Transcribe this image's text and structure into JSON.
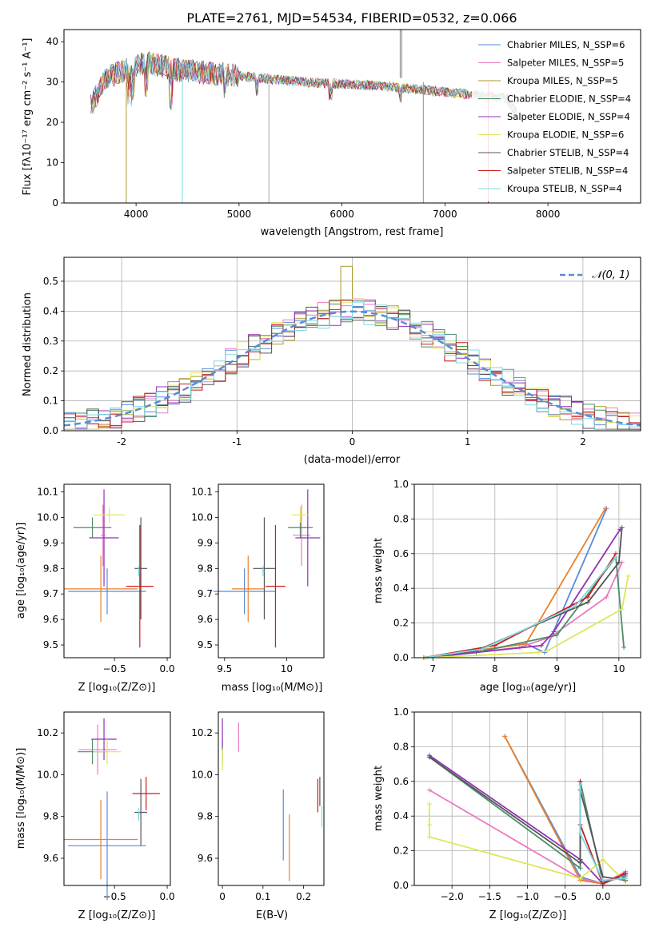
{
  "figure_title": "PLATE=2761, MJD=54534, FIBERID=0532, z=0.066",
  "colors": [
    "#5b8ad9",
    "#e87bbf",
    "#a99a2a",
    "#4d8c68",
    "#9033b3",
    "#dfe65b",
    "#555555",
    "#c81e1e",
    "#7ed9e6"
  ],
  "chart_data": [
    {
      "id": "spectrum",
      "type": "line",
      "title": "PLATE=2761, MJD=54534, FIBERID=0532, z=0.066",
      "xlabel": "wavelength [Angstrom, rest frame]",
      "ylabel": "Flux [fλ10⁻¹⁷ erg cm⁻² s⁻¹ A⁻¹]",
      "xlim": [
        3300,
        8900
      ],
      "ylim": [
        0,
        43
      ],
      "xticks": [
        4000,
        5000,
        6000,
        7000,
        8000
      ],
      "yticks": [
        0,
        10,
        20,
        30,
        40
      ],
      "grid": false,
      "legend_position": "upper right",
      "series": [
        {
          "name": "Chabrier MILES, N_SSP=6",
          "color": "#5b8ad9"
        },
        {
          "name": "Salpeter MILES, N_SSP=5",
          "color": "#e87bbf"
        },
        {
          "name": "Kroupa MILES, N_SSP=5",
          "color": "#a99a2a"
        },
        {
          "name": "Chabrier ELODIE, N_SSP=4",
          "color": "#4d8c68"
        },
        {
          "name": "Salpeter ELODIE, N_SSP=4",
          "color": "#9033b3"
        },
        {
          "name": "Kroupa ELODIE, N_SSP=6",
          "color": "#dfe65b"
        },
        {
          "name": "Chabrier STELIB, N_SSP=4",
          "color": "#555555"
        },
        {
          "name": "Salpeter STELIB, N_SSP=4",
          "color": "#c81e1e"
        },
        {
          "name": "Kroupa STELIB, N_SSP=4",
          "color": "#7ed9e6"
        }
      ],
      "approx_continuum": {
        "x": [
          3560,
          3700,
          3900,
          4100,
          4400,
          4800,
          5200,
          5600,
          6000,
          6400,
          6800,
          7200,
          7600,
          7700
        ],
        "y": [
          24,
          31,
          33,
          35,
          33,
          32,
          31,
          30,
          29.5,
          29,
          28,
          27,
          26,
          22
        ]
      }
    },
    {
      "id": "residuals",
      "type": "histogram",
      "xlabel": "(data-model)/error",
      "ylabel": "Normed distribution",
      "xlim": [
        -2.5,
        2.5
      ],
      "ylim": [
        0,
        0.58
      ],
      "xticks": [
        -2,
        -1,
        0,
        1,
        2
      ],
      "yticks": [
        0.0,
        0.1,
        0.2,
        0.3,
        0.4,
        0.5
      ],
      "grid": true,
      "legend": "𝒩(0, 1)",
      "legend_position": "upper right",
      "reference_curve": {
        "name": "N(0,1)",
        "mean": 0,
        "sigma": 1,
        "style": "dashed",
        "color": "#5b8ad9"
      },
      "bin_width": 0.1,
      "histogram_peak": {
        "x": -0.05,
        "y": 0.55
      }
    },
    {
      "id": "age-vs-Z",
      "type": "errorbar",
      "xlabel": "Z [log₁₀(Z/Z⊙)]",
      "ylabel": "age  [log₁₀(age/yr)]",
      "xlim": [
        -0.98,
        0.03
      ],
      "ylim": [
        9.45,
        10.13
      ],
      "xticks": [
        -0.5,
        0.0
      ],
      "xtick_labels": [
        "−0.5",
        "0.0"
      ],
      "yticks": [
        9.5,
        9.6,
        9.7,
        9.8,
        9.9,
        10.0,
        10.1
      ],
      "grid": false,
      "points": [
        {
          "x": -0.57,
          "xerr": 0.37,
          "y": 9.71,
          "yerr": 0.09,
          "color": "#5b8ad9"
        },
        {
          "x": -0.61,
          "xerr": 0.02,
          "y": 9.93,
          "yerr": 0.12,
          "color": "#e87bbf"
        },
        {
          "x": -0.63,
          "xerr": 0.35,
          "y": 9.72,
          "yerr": 0.13,
          "color": "#e8812a"
        },
        {
          "x": -0.71,
          "xerr": 0.18,
          "y": 9.96,
          "yerr": 0.04,
          "color": "#4d8c68"
        },
        {
          "x": -0.6,
          "xerr": 0.14,
          "y": 9.92,
          "yerr": 0.19,
          "color": "#9033b3"
        },
        {
          "x": -0.55,
          "xerr": 0.15,
          "y": 10.01,
          "yerr": 0.03,
          "color": "#dfe65b"
        },
        {
          "x": -0.25,
          "xerr": 0.06,
          "y": 9.8,
          "yerr": 0.2,
          "color": "#555555"
        },
        {
          "x": -0.26,
          "xerr": 0.13,
          "y": 9.73,
          "yerr": 0.24,
          "color": "#c81e1e"
        },
        {
          "x": -0.27,
          "xerr": 0.01,
          "y": 9.79,
          "yerr": 0.02,
          "color": "#7ed9e6"
        }
      ]
    },
    {
      "id": "age-vs-mass",
      "type": "errorbar",
      "xlabel": "mass [log₁₀(M/M⊙)]",
      "ylabel": "",
      "xlim": [
        9.45,
        10.3
      ],
      "ylim": [
        9.45,
        10.13
      ],
      "xticks": [
        9.5,
        10.0
      ],
      "yticks": [
        9.5,
        9.6,
        9.7,
        9.8,
        9.9,
        10.0,
        10.1
      ],
      "grid": false,
      "points": [
        {
          "x": 9.66,
          "xerr": 0.25,
          "y": 9.71,
          "yerr": 0.09,
          "color": "#5b8ad9"
        },
        {
          "x": 10.12,
          "xerr": 0.07,
          "y": 9.93,
          "yerr": 0.12,
          "color": "#e87bbf"
        },
        {
          "x": 9.69,
          "xerr": 0.13,
          "y": 9.72,
          "yerr": 0.13,
          "color": "#e8812a"
        },
        {
          "x": 10.11,
          "xerr": 0.1,
          "y": 9.96,
          "yerr": 0.04,
          "color": "#4d8c68"
        },
        {
          "x": 10.17,
          "xerr": 0.1,
          "y": 9.92,
          "yerr": 0.19,
          "color": "#9033b3"
        },
        {
          "x": 10.11,
          "xerr": 0.07,
          "y": 10.01,
          "yerr": 0.03,
          "color": "#dfe65b"
        },
        {
          "x": 9.82,
          "xerr": 0.09,
          "y": 9.8,
          "yerr": 0.2,
          "color": "#555555"
        },
        {
          "x": 9.91,
          "xerr": 0.08,
          "y": 9.73,
          "yerr": 0.24,
          "color": "#c81e1e"
        },
        {
          "x": 9.81,
          "xerr": 0.01,
          "y": 9.79,
          "yerr": 0.02,
          "color": "#7ed9e6"
        }
      ]
    },
    {
      "id": "weight-vs-age",
      "type": "line",
      "xlabel": "age  [log₁₀(age/yr)]",
      "ylabel": "mass weight",
      "xlim": [
        6.7,
        10.35
      ],
      "ylim": [
        0,
        1.0
      ],
      "xticks": [
        7,
        8,
        9,
        10
      ],
      "yticks": [
        0.0,
        0.2,
        0.4,
        0.6,
        0.8,
        1.0
      ],
      "grid": true,
      "series": [
        {
          "color": "#5b8ad9",
          "x": [
            6.85,
            8.5,
            8.8,
            9.8
          ],
          "y": [
            0.0,
            0.08,
            0.03,
            0.86
          ]
        },
        {
          "color": "#e87bbf",
          "x": [
            6.9,
            8.4,
            8.9,
            9.8,
            10.05
          ],
          "y": [
            0.0,
            0.06,
            0.12,
            0.35,
            0.55
          ]
        },
        {
          "color": "#e8812a",
          "x": [
            6.85,
            8.5,
            9.78
          ],
          "y": [
            0.0,
            0.08,
            0.86
          ]
        },
        {
          "color": "#4d8c68",
          "x": [
            6.9,
            7.7,
            9.0,
            9.95,
            10.08
          ],
          "y": [
            0.0,
            0.03,
            0.13,
            0.58,
            0.06
          ]
        },
        {
          "color": "#9033b3",
          "x": [
            6.9,
            8.75,
            8.95,
            10.02
          ],
          "y": [
            0.0,
            0.07,
            0.15,
            0.74
          ]
        },
        {
          "color": "#dfe65b",
          "x": [
            6.9,
            8.7,
            8.85,
            10.05,
            10.15
          ],
          "y": [
            0.0,
            0.03,
            0.04,
            0.28,
            0.47
          ]
        },
        {
          "color": "#555555",
          "x": [
            6.85,
            7.7,
            9.5,
            10.0,
            10.05
          ],
          "y": [
            0.0,
            0.04,
            0.32,
            0.55,
            0.75
          ]
        },
        {
          "color": "#c81e1e",
          "x": [
            6.85,
            8.0,
            9.5,
            9.95
          ],
          "y": [
            0.0,
            0.07,
            0.35,
            0.6
          ]
        },
        {
          "color": "#7ed9e6",
          "x": [
            6.85,
            7.8,
            9.3,
            9.95
          ],
          "y": [
            0.0,
            0.05,
            0.3,
            0.58
          ]
        }
      ]
    },
    {
      "id": "mass-vs-Z",
      "type": "errorbar",
      "xlabel": "Z [log₁₀(Z/Z⊙)]",
      "ylabel": "mass [log₁₀(M/M⊙)]",
      "xlim": [
        -0.98,
        0.03
      ],
      "ylim": [
        9.47,
        10.3
      ],
      "xticks": [
        -0.5,
        0.0
      ],
      "xtick_labels": [
        "−0.5",
        "0.0"
      ],
      "yticks": [
        9.6,
        9.8,
        10.0,
        10.2
      ],
      "grid": false,
      "points": [
        {
          "x": -0.57,
          "xerr": 0.37,
          "y": 9.66,
          "yerr": 0.26,
          "color": "#5b8ad9"
        },
        {
          "x": -0.66,
          "xerr": 0.18,
          "y": 10.12,
          "yerr": 0.12,
          "color": "#e87bbf"
        },
        {
          "x": -0.63,
          "xerr": 0.35,
          "y": 9.69,
          "yerr": 0.19,
          "color": "#e8812a"
        },
        {
          "x": -0.71,
          "xerr": 0.14,
          "y": 10.11,
          "yerr": 0.06,
          "color": "#4d8c68"
        },
        {
          "x": -0.6,
          "xerr": 0.12,
          "y": 10.17,
          "yerr": 0.1,
          "color": "#9033b3"
        },
        {
          "x": -0.57,
          "xerr": 0.13,
          "y": 10.11,
          "yerr": 0.06,
          "color": "#dfe65b"
        },
        {
          "x": -0.25,
          "xerr": 0.06,
          "y": 9.82,
          "yerr": 0.16,
          "color": "#555555"
        },
        {
          "x": -0.2,
          "xerr": 0.13,
          "y": 9.91,
          "yerr": 0.08,
          "color": "#c81e1e"
        },
        {
          "x": -0.27,
          "xerr": 0.01,
          "y": 9.81,
          "yerr": 0.03,
          "color": "#7ed9e6"
        }
      ]
    },
    {
      "id": "mass-vs-EBV",
      "type": "errorbar",
      "xlabel": "E(B-V)",
      "ylabel": "",
      "xlim": [
        -0.01,
        0.25
      ],
      "ylim": [
        9.47,
        10.3
      ],
      "xticks": [
        0.0,
        0.1,
        0.2
      ],
      "yticks": [
        9.6,
        9.8,
        10.0,
        10.2
      ],
      "grid": false,
      "points": [
        {
          "x": 0.15,
          "y": 9.76,
          "yerr": 0.17,
          "color": "#5b8ad9"
        },
        {
          "x": 0.04,
          "y": 10.18,
          "yerr": 0.07,
          "color": "#e87bbf"
        },
        {
          "x": 0.165,
          "y": 9.65,
          "yerr": 0.16,
          "color": "#e8812a"
        },
        {
          "x": 0.0,
          "y": 10.11,
          "yerr": 0.06,
          "color": "#4d8c68"
        },
        {
          "x": 0.0,
          "y": 10.2,
          "yerr": 0.07,
          "color": "#9033b3"
        },
        {
          "x": 0.0,
          "y": 10.07,
          "yerr": 0.05,
          "color": "#dfe65b"
        },
        {
          "x": 0.24,
          "y": 9.92,
          "yerr": 0.07,
          "color": "#555555"
        },
        {
          "x": 0.235,
          "y": 9.9,
          "yerr": 0.08,
          "color": "#c81e1e"
        },
        {
          "x": 0.245,
          "y": 9.8,
          "yerr": 0.05,
          "color": "#7ed9e6"
        }
      ]
    },
    {
      "id": "weight-vs-Z",
      "type": "line",
      "xlabel": "Z [log₁₀(Z/Z⊙)]",
      "ylabel": "mass weight",
      "xlim": [
        -2.5,
        0.5
      ],
      "ylim": [
        0,
        1.0
      ],
      "xticks": [
        -2.0,
        -1.5,
        -1.0,
        -0.5,
        0.0
      ],
      "xtick_labels": [
        "−2.0",
        "−1.5",
        "−1.0",
        "−0.5",
        "0.0"
      ],
      "yticks": [
        0.0,
        0.2,
        0.4,
        0.6,
        0.8,
        1.0
      ],
      "grid": true,
      "series": [
        {
          "color": "#5b8ad9",
          "x": [
            -1.3,
            -0.3,
            0.0,
            0.3
          ],
          "y": [
            0.86,
            0.05,
            0.01,
            0.06
          ]
        },
        {
          "color": "#e87bbf",
          "x": [
            -2.3,
            -0.3,
            0.0,
            0.3
          ],
          "y": [
            0.55,
            0.04,
            0.01,
            0.08
          ]
        },
        {
          "color": "#e8812a",
          "x": [
            -1.3,
            -0.3,
            0.0,
            0.3
          ],
          "y": [
            0.86,
            0.03,
            0.01,
            0.07
          ]
        },
        {
          "color": "#4d8c68",
          "x": [
            -2.3,
            -0.3,
            -0.3,
            0.0,
            0.3
          ],
          "y": [
            0.74,
            0.1,
            0.6,
            0.02,
            0.05
          ]
        },
        {
          "color": "#9033b3",
          "x": [
            -2.3,
            -0.3,
            0.0,
            0.3
          ],
          "y": [
            0.75,
            0.15,
            0.01,
            0.07
          ]
        },
        {
          "color": "#dfe65b",
          "x": [
            -2.3,
            -2.3,
            -2.3,
            -0.3,
            0.0,
            0.3
          ],
          "y": [
            0.47,
            0.35,
            0.28,
            0.04,
            0.15,
            0.02
          ]
        },
        {
          "color": "#555555",
          "x": [
            -2.3,
            -0.3,
            -0.3,
            0.0,
            0.3
          ],
          "y": [
            0.74,
            0.13,
            0.55,
            0.05,
            0.03
          ]
        },
        {
          "color": "#c81e1e",
          "x": [
            -0.3,
            -0.3,
            0.0,
            0.3
          ],
          "y": [
            0.6,
            0.35,
            0.01,
            0.07
          ]
        },
        {
          "color": "#7ed9e6",
          "x": [
            -0.3,
            -0.3,
            0.0,
            0.3
          ],
          "y": [
            0.58,
            0.3,
            0.03,
            0.04
          ]
        }
      ]
    }
  ]
}
